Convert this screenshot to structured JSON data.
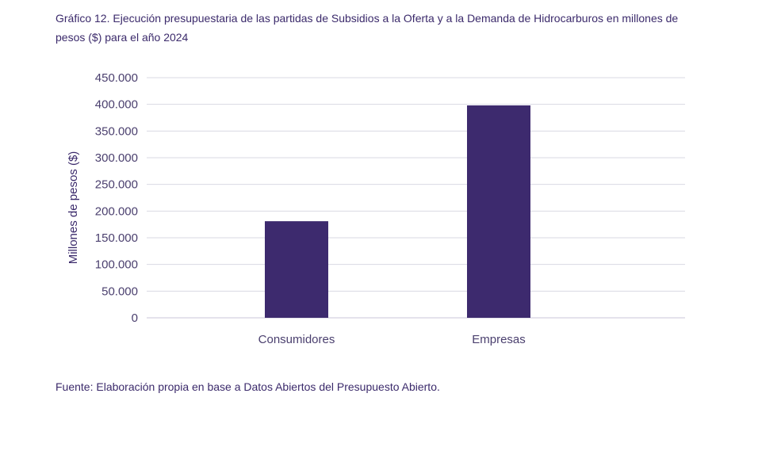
{
  "title": "Gráfico 12. Ejecución presupuestaria de las partidas de Subsidios a la Oferta y a la Demanda de Hidrocarburos en millones de pesos ($) para el año 2024",
  "source": "Fuente: Elaboración propia en base a Datos Abiertos del Presupuesto Abierto.",
  "colors": {
    "bar": "#3d2a6e",
    "grid": "#d9d9e3",
    "text": "#3b2a6b"
  },
  "chart_data": {
    "type": "bar",
    "categories": [
      "Consumidores",
      "Empresas"
    ],
    "values": [
      181000,
      398000
    ],
    "ylabel": "Millones de pesos ($)",
    "xlabel": "",
    "ylim": [
      0,
      450000
    ],
    "yticks": [
      0,
      50000,
      100000,
      150000,
      200000,
      250000,
      300000,
      350000,
      400000,
      450000
    ],
    "ytick_labels": [
      "0",
      "50.000",
      "100.000",
      "150.000",
      "200.000",
      "250.000",
      "300.000",
      "350.000",
      "400.000",
      "450.000"
    ],
    "grid": true,
    "legend": "none"
  }
}
